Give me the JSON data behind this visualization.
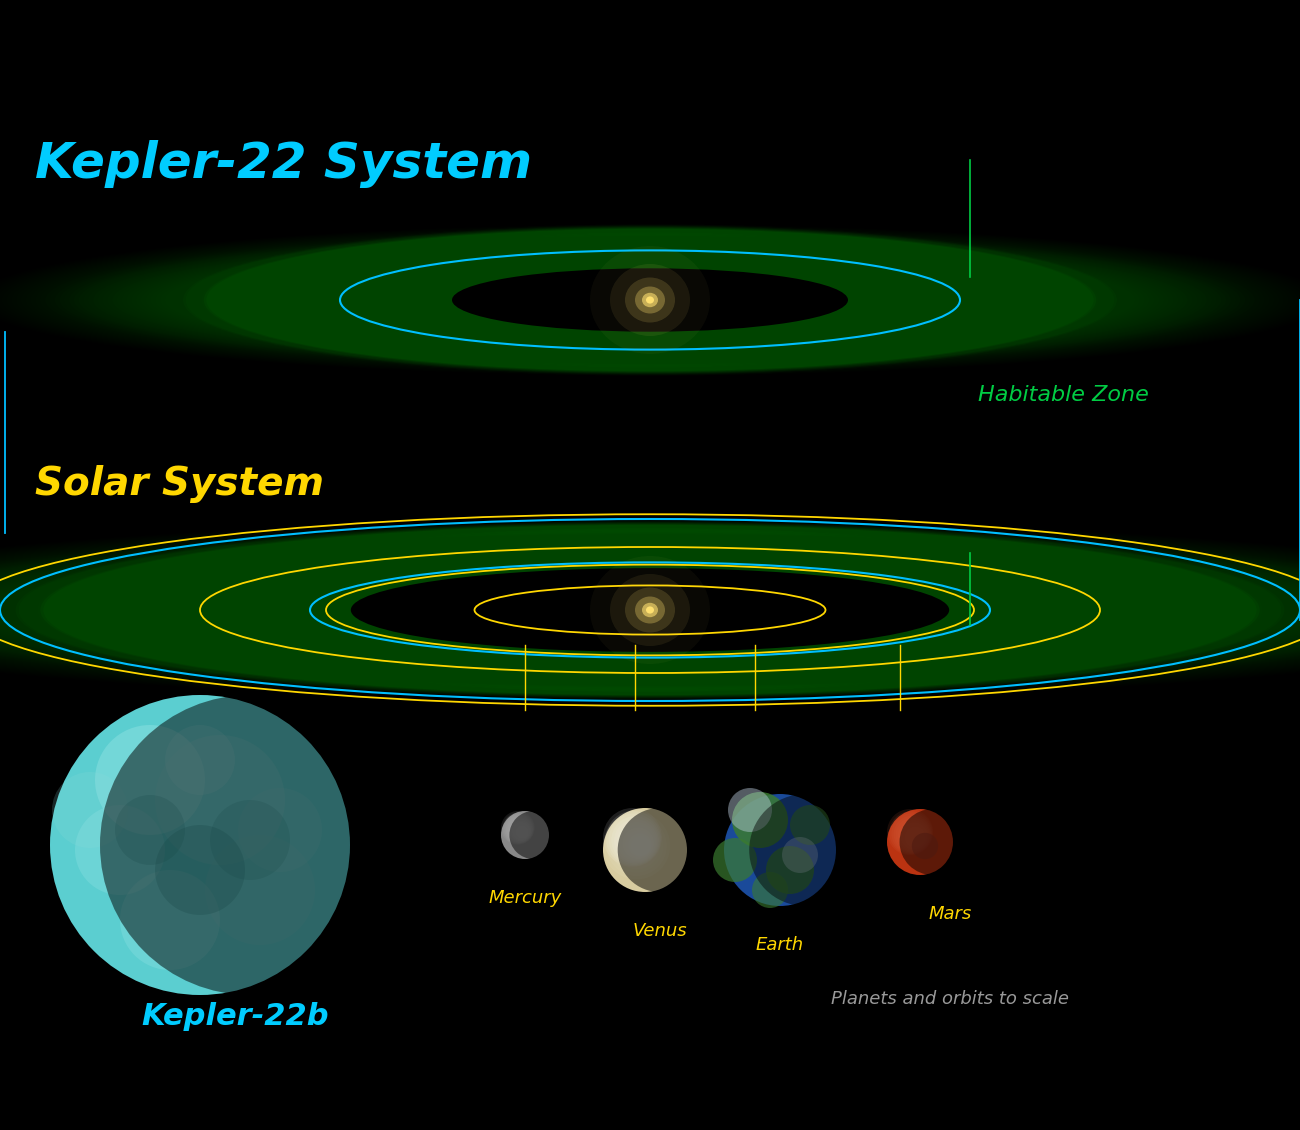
{
  "bg_color": "#000000",
  "title_kepler": "Kepler-22 System",
  "title_solar": "Solar System",
  "label_habitable": "Habitable Zone",
  "label_kepler22b": "Kepler-22b",
  "label_mercury": "Mercury",
  "label_venus": "Venus",
  "label_earth": "Earth",
  "label_mars": "Mars",
  "label_scale": "Planets and orbits to scale",
  "title_kepler_color": "#00CCFF",
  "title_solar_color": "#FFD700",
  "habitable_color": "#00CC44",
  "kepler22b_color": "#00CCFF",
  "planet_label_color": "#FFD700",
  "scale_text_color": "#999999",
  "orbit_cyan_color": "#00BFFF",
  "orbit_yellow_color": "#FFD700",
  "hz_green_bright": "#007700",
  "hz_green_dark": "#003300",
  "star_color": "#FFE070"
}
